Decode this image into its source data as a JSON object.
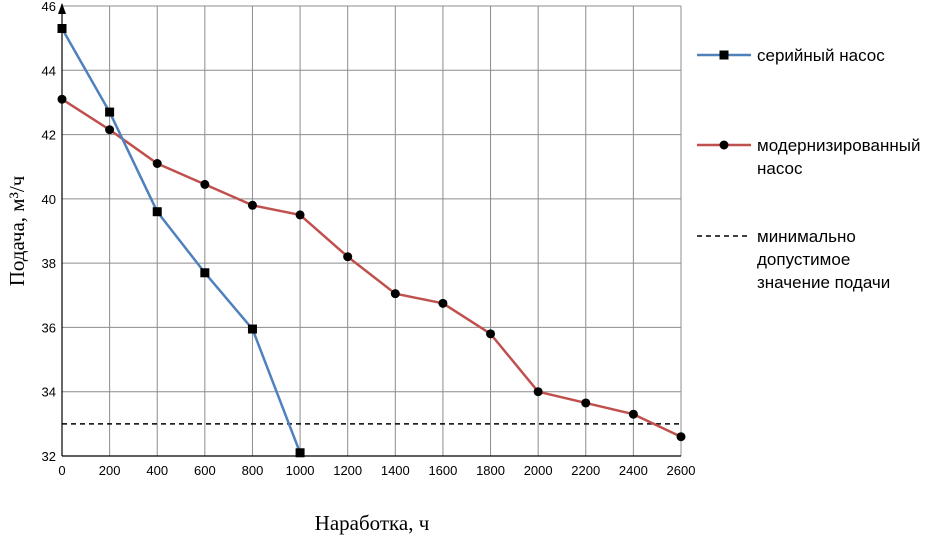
{
  "chart_data": {
    "type": "line",
    "xlabel": "Наработка, ч",
    "ylabel": "Подача, м³/ч",
    "xlim": [
      0,
      2600
    ],
    "ylim": [
      32,
      46
    ],
    "x_ticks": [
      "0",
      "200",
      "400",
      "600",
      "800",
      "1000",
      "1200",
      "1400",
      "1600",
      "1800",
      "2000",
      "2200",
      "2400",
      "2600"
    ],
    "y_ticks": [
      "32",
      "34",
      "36",
      "38",
      "40",
      "42",
      "44",
      "46"
    ],
    "grid": true,
    "legend_position": "right",
    "series": [
      {
        "name": "серийный насос",
        "color": "#4f81bd",
        "marker": "square",
        "x": [
          0,
          200,
          400,
          600,
          800,
          1000
        ],
        "y": [
          45.3,
          42.7,
          39.6,
          37.7,
          35.95,
          32.1
        ]
      },
      {
        "name": "модернизированный насос",
        "name_lines": [
          "модернизированный",
          "насос"
        ],
        "color": "#c0504d",
        "marker": "circle",
        "x": [
          0,
          200,
          400,
          600,
          800,
          1000,
          1200,
          1400,
          1600,
          1800,
          2000,
          2200,
          2400,
          2600
        ],
        "y": [
          43.1,
          42.15,
          41.1,
          40.45,
          39.8,
          39.5,
          38.2,
          37.05,
          36.75,
          35.8,
          34.0,
          33.65,
          33.3,
          32.6
        ]
      },
      {
        "name": "минимально допустимое значение подачи",
        "name_lines": [
          "минимально",
          "допустимое",
          "значение подачи"
        ],
        "color": "#000000",
        "line_style": "dashed",
        "x": [
          0,
          2600
        ],
        "y": [
          33,
          33
        ]
      }
    ]
  }
}
